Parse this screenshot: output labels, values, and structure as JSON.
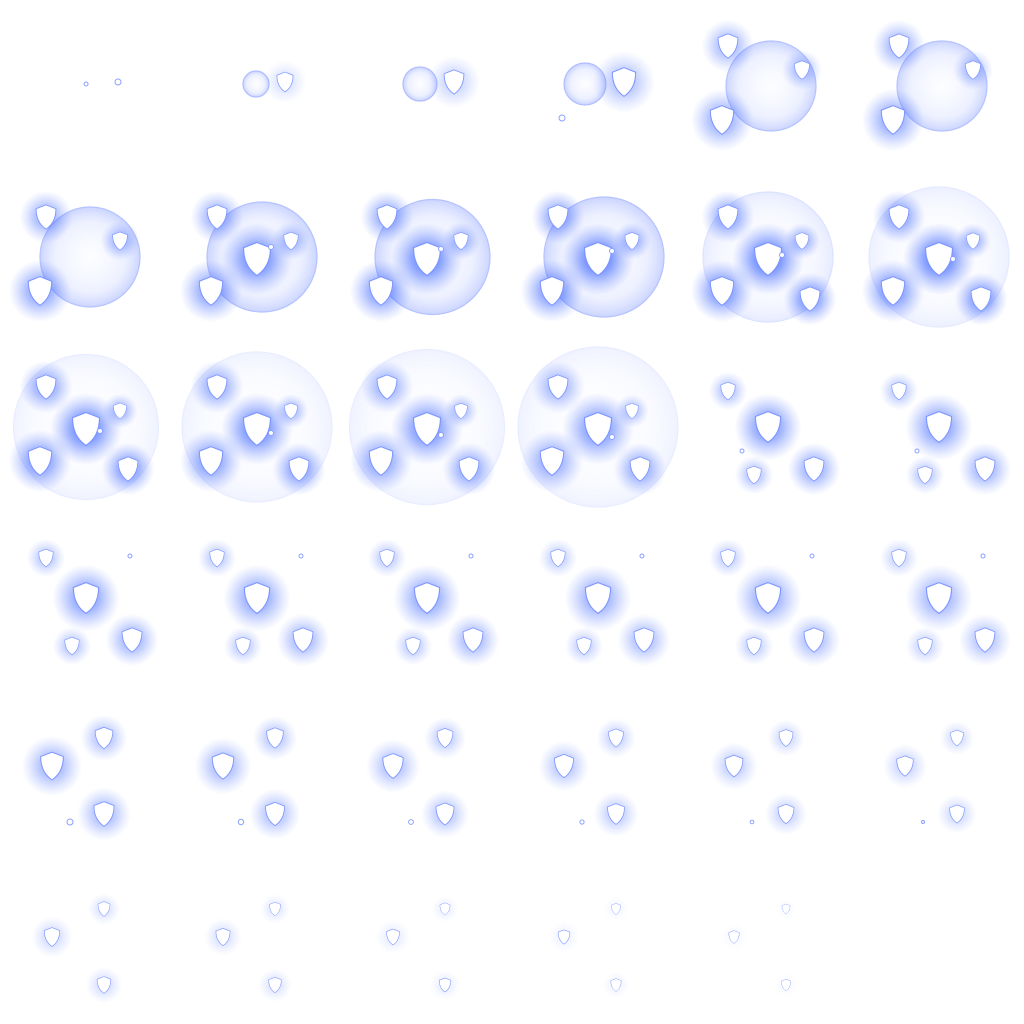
{
  "sprite_sheet": {
    "subject": "shield-bubble-effect",
    "grid": {
      "columns": 6,
      "rows": 6
    },
    "frame_count": 35,
    "colors": {
      "background": "#ffffff",
      "glow": "#2f5bff",
      "glow_soft": "#6f8cff",
      "bubble_fill": "#dfe6ff",
      "bubble_edge": "#a8b8ff",
      "shield": "#ffffff"
    },
    "icon": "shield-icon",
    "frames": [
      {
        "id": 1,
        "phase": "spawn",
        "bubble": 0.0,
        "intensity": 0.2
      },
      {
        "id": 2,
        "phase": "spawn",
        "bubble": 0.1,
        "intensity": 0.35
      },
      {
        "id": 3,
        "phase": "spawn",
        "bubble": 0.15,
        "intensity": 0.5
      },
      {
        "id": 4,
        "phase": "spawn",
        "bubble": 0.2,
        "intensity": 0.7
      },
      {
        "id": 5,
        "phase": "grow",
        "bubble": 0.3,
        "intensity": 0.8
      },
      {
        "id": 6,
        "phase": "grow",
        "bubble": 0.3,
        "intensity": 0.85
      },
      {
        "id": 7,
        "phase": "grow",
        "bubble": 0.4,
        "intensity": 0.9
      },
      {
        "id": 8,
        "phase": "grow",
        "bubble": 0.5,
        "intensity": 0.9
      },
      {
        "id": 9,
        "phase": "grow",
        "bubble": 0.55,
        "intensity": 0.95
      },
      {
        "id": 10,
        "phase": "grow",
        "bubble": 0.6,
        "intensity": 1.0
      },
      {
        "id": 11,
        "phase": "peak",
        "bubble": 0.7,
        "intensity": 1.0
      },
      {
        "id": 12,
        "phase": "peak",
        "bubble": 0.8,
        "intensity": 1.0
      },
      {
        "id": 13,
        "phase": "peak",
        "bubble": 0.85,
        "intensity": 0.95
      },
      {
        "id": 14,
        "phase": "peak",
        "bubble": 0.9,
        "intensity": 0.9
      },
      {
        "id": 15,
        "phase": "peak",
        "bubble": 0.95,
        "intensity": 0.85
      },
      {
        "id": 16,
        "phase": "peak",
        "bubble": 1.0,
        "intensity": 0.8
      },
      {
        "id": 17,
        "phase": "scatter",
        "bubble": 0.0,
        "intensity": 0.8
      },
      {
        "id": 18,
        "phase": "scatter",
        "bubble": 0.0,
        "intensity": 0.75
      },
      {
        "id": 19,
        "phase": "scatter",
        "bubble": 0.0,
        "intensity": 0.75
      },
      {
        "id": 20,
        "phase": "scatter",
        "bubble": 0.0,
        "intensity": 0.7
      },
      {
        "id": 21,
        "phase": "scatter",
        "bubble": 0.0,
        "intensity": 0.7
      },
      {
        "id": 22,
        "phase": "scatter",
        "bubble": 0.0,
        "intensity": 0.65
      },
      {
        "id": 23,
        "phase": "scatter",
        "bubble": 0.0,
        "intensity": 0.65
      },
      {
        "id": 24,
        "phase": "scatter",
        "bubble": 0.0,
        "intensity": 0.6
      },
      {
        "id": 25,
        "phase": "fade",
        "bubble": 0.0,
        "intensity": 0.6
      },
      {
        "id": 26,
        "phase": "fade",
        "bubble": 0.0,
        "intensity": 0.55
      },
      {
        "id": 27,
        "phase": "fade",
        "bubble": 0.0,
        "intensity": 0.5
      },
      {
        "id": 28,
        "phase": "fade",
        "bubble": 0.0,
        "intensity": 0.45
      },
      {
        "id": 29,
        "phase": "fade",
        "bubble": 0.0,
        "intensity": 0.4
      },
      {
        "id": 30,
        "phase": "fade",
        "bubble": 0.0,
        "intensity": 0.35
      },
      {
        "id": 31,
        "phase": "fade",
        "bubble": 0.0,
        "intensity": 0.3
      },
      {
        "id": 32,
        "phase": "fade",
        "bubble": 0.0,
        "intensity": 0.25
      },
      {
        "id": 33,
        "phase": "fade",
        "bubble": 0.0,
        "intensity": 0.15
      },
      {
        "id": 34,
        "phase": "fade",
        "bubble": 0.0,
        "intensity": 0.1
      },
      {
        "id": 35,
        "phase": "fade",
        "bubble": 0.0,
        "intensity": 0.05
      }
    ]
  }
}
